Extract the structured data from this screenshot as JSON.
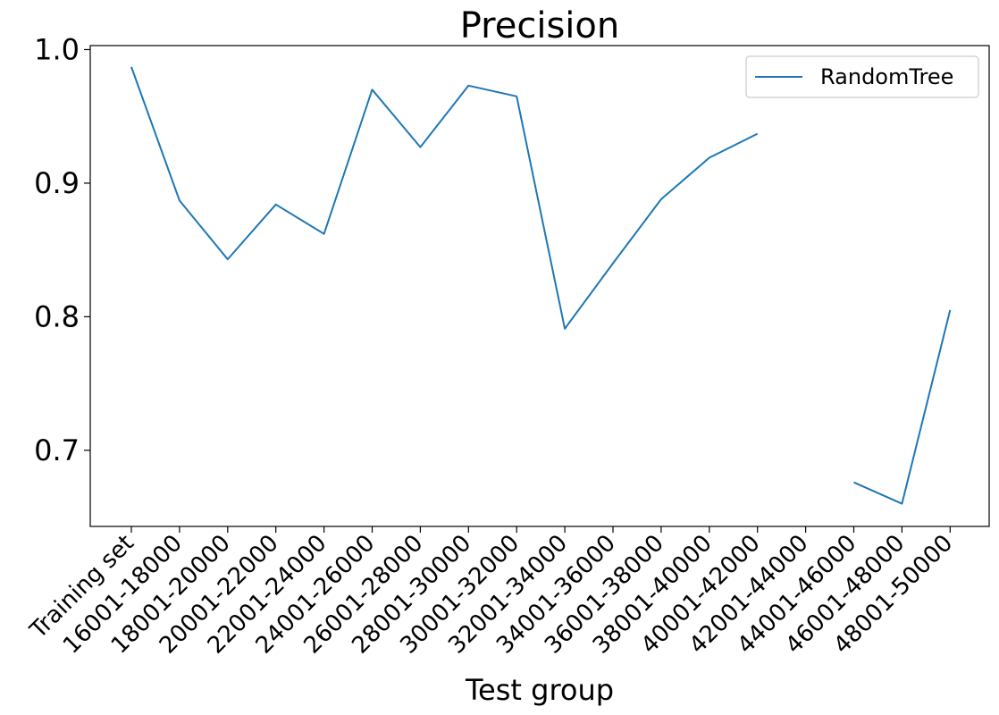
{
  "chart_data": {
    "type": "line",
    "title": "Precision",
    "xlabel": "Test group",
    "ylabel": "",
    "categories": [
      "Training set",
      "16001-18000",
      "18001-20000",
      "20001-22000",
      "22001-24000",
      "24001-26000",
      "26001-28000",
      "28001-30000",
      "30001-32000",
      "32001-34000",
      "34001-36000",
      "36001-38000",
      "38001-40000",
      "40001-42000",
      "42001-44000",
      "44001-46000",
      "46001-48000",
      "48001-50000"
    ],
    "yticks": [
      "0.7",
      "0.8",
      "0.9",
      "1.0"
    ],
    "ylim": [
      0.643,
      1.003
    ],
    "grid": false,
    "legend_position": "top-right",
    "series": [
      {
        "name": "RandomTree",
        "color": "#1f77b4",
        "values": [
          0.987,
          0.887,
          0.843,
          0.884,
          0.862,
          0.97,
          0.927,
          0.973,
          0.965,
          0.791,
          0.84,
          0.888,
          0.919,
          0.937,
          null,
          0.676,
          0.66,
          0.805
        ]
      }
    ]
  }
}
